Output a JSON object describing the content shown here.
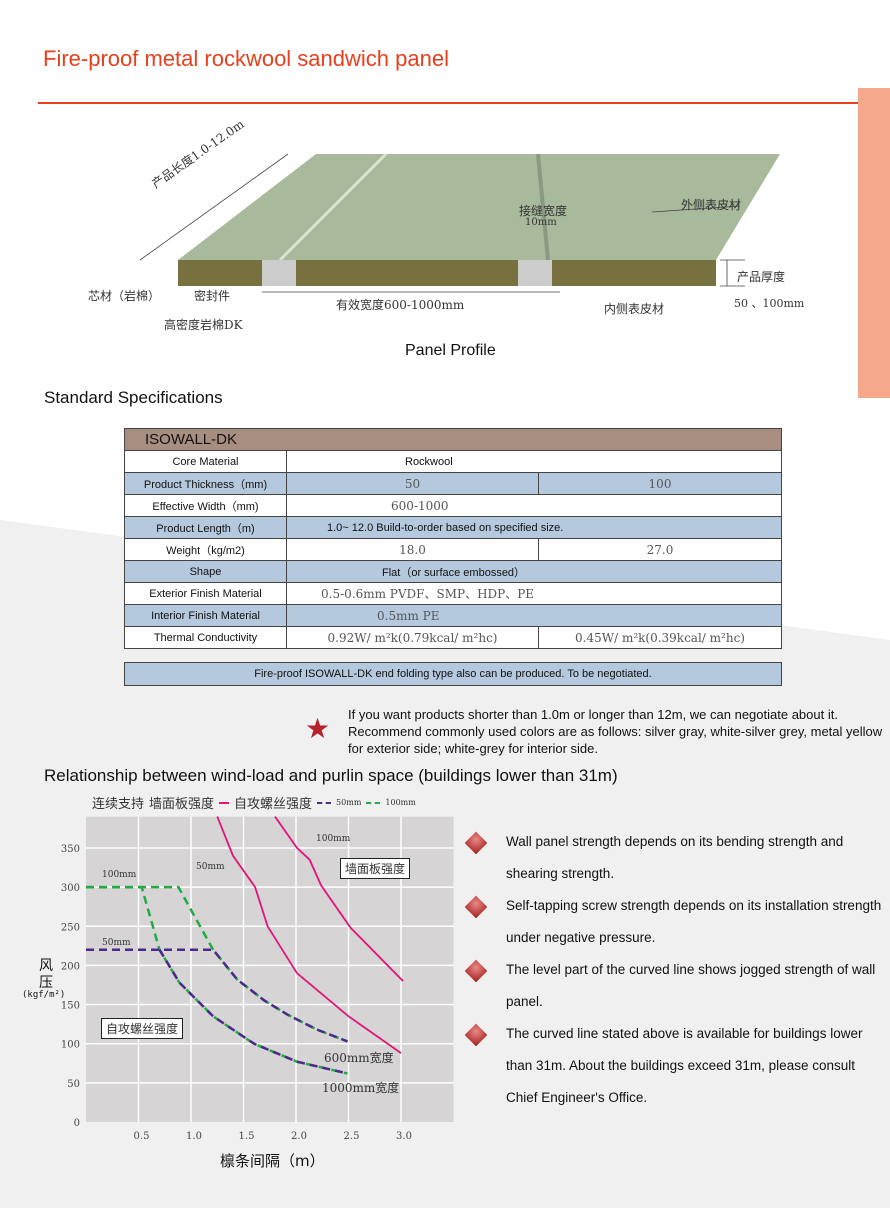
{
  "header": {
    "title": "Fire-proof metal rockwool sandwich panel"
  },
  "colors": {
    "accent": "#e8401c",
    "side_bar": "#f5a98a",
    "table_header": "#a88e80",
    "table_blue": "#b4c8de",
    "wall_panel_line": "#e0157a",
    "screw_50mm": "#4b2a8a",
    "screw_100mm": "#22aa44"
  },
  "diagram": {
    "caption": "Panel Profile",
    "labels": {
      "length": "产品长度1.0-12.0m",
      "joint": "接缝宽度",
      "joint_value": "10mm",
      "outer_skin": "外侧表皮材",
      "thickness": "产品厚度",
      "thickness_value": "50 、100mm",
      "core": "芯材（岩棉）",
      "seal": "密封件",
      "width": "有效宽度600-1000mm",
      "inner_skin": "内侧表皮材",
      "hd_rockwool": "高密度岩棉DK"
    }
  },
  "specs": {
    "section_title": "Standard Specifications",
    "table_title": "ISOWALL-DK",
    "rows": [
      {
        "label": "Core Material",
        "values": [
          "Rockwool"
        ]
      },
      {
        "label": "Product Thickness（mm)",
        "values": [
          "50",
          "100"
        ]
      },
      {
        "label": "Effective Width（mm)",
        "values": [
          "600-1000"
        ]
      },
      {
        "label": "Product Length（m)",
        "values": [
          "1.0~ 12.0 Build-to-order based on specified size."
        ]
      },
      {
        "label": "Weight（kg/m2)",
        "values": [
          "18.0",
          "27.0"
        ]
      },
      {
        "label": "Shape",
        "values": [
          "Flat（or surface embossed）"
        ]
      },
      {
        "label": "Exterior Finish Material",
        "values": [
          "0.5-0.6mm  PVDF、SMP、HDP、PE"
        ]
      },
      {
        "label": "Interior Finish Material",
        "values": [
          "0.5mm  PE"
        ]
      },
      {
        "label": "Thermal Conductivity",
        "values": [
          "0.92W/ m²k(0.79kcal/ m²hc)",
          "0.45W/ m²k(0.39kcal/ m²hc)"
        ]
      }
    ],
    "note": "Fire-proof ISOWALL-DK end folding type also can be produced. To be negotiated."
  },
  "star_note": {
    "icon": "star-icon",
    "lines": [
      "If you want products shorter than 1.0m or longer than 12m, we can negotiate about it.",
      "Recommend commonly used colors are as follows: silver gray, white-silver grey, metal yellow for exterior side; white-grey for interior side."
    ]
  },
  "wind": {
    "title": "Relationship between wind-load and purlin space (buildings lower than 31m)",
    "bullets": [
      "Wall panel strength depends on its bending strength and shearing strength.",
      "Self-tapping screw strength depends on its installation strength under negative pressure.",
      "The level part of the curved line shows jogged strength of wall panel.",
      "The curved line stated above is available for buildings lower than 31m. About the buildings exceed 31m, please consult Chief Engineer's Office."
    ]
  },
  "chart_data": {
    "type": "line",
    "legend": {
      "prefix": "连续支持",
      "wall_panel": "墙面板强度",
      "screw": "自攻螺丝强度",
      "s50": "50mm",
      "s100": "100mm",
      "placement": "top"
    },
    "xlabel": "檩条间隔（m）",
    "ylabel": "风压",
    "ylabel_unit": "(kgf/m²)",
    "xlim": [
      0,
      3.5
    ],
    "ylim": [
      0,
      390
    ],
    "xticks": [
      "0.5",
      "1.0",
      "1.5",
      "2.0",
      "2.5",
      "3.0"
    ],
    "yticks": [
      "0",
      "50",
      "100",
      "150",
      "200",
      "250",
      "300",
      "350"
    ],
    "grid": true,
    "annotations": {
      "wall_box": "墙面板强度",
      "screw_box": "自攻螺丝强度",
      "w600": "600mm宽度",
      "w1000": "1000mm宽度",
      "wall50": "50mm",
      "wall100": "100mm",
      "screw100": "100mm",
      "screw50": "50mm"
    },
    "series": [
      {
        "group": "wall",
        "thickness": "50mm",
        "style": "solid",
        "points": [
          [
            1.25,
            390
          ],
          [
            1.4,
            340
          ],
          [
            1.61,
            300
          ],
          [
            1.73,
            250
          ],
          [
            2.01,
            190
          ],
          [
            2.5,
            135
          ],
          [
            3.0,
            88
          ]
        ]
      },
      {
        "group": "wall",
        "thickness": "100mm",
        "style": "solid",
        "points": [
          [
            1.8,
            390
          ],
          [
            2.01,
            350
          ],
          [
            2.13,
            335
          ],
          [
            2.24,
            302
          ],
          [
            2.52,
            248
          ],
          [
            3.02,
            180
          ]
        ]
      },
      {
        "group": "screw",
        "thickness": "100mm",
        "width": "600mm",
        "style": "dashed-green",
        "points": [
          [
            0,
            300
          ],
          [
            0.88,
            300
          ],
          [
            1.21,
            220
          ],
          [
            1.44,
            182
          ],
          [
            1.7,
            155
          ],
          [
            1.92,
            137
          ],
          [
            2.2,
            118
          ],
          [
            2.49,
            103
          ]
        ]
      },
      {
        "group": "screw",
        "thickness": "100mm",
        "width": "1000mm",
        "style": "dashed-green",
        "points": [
          [
            0,
            300
          ],
          [
            0.53,
            300
          ],
          [
            0.7,
            220
          ],
          [
            0.89,
            178
          ],
          [
            1.21,
            135
          ],
          [
            1.6,
            100
          ],
          [
            2.01,
            77
          ],
          [
            2.49,
            62
          ]
        ]
      },
      {
        "group": "screw",
        "thickness": "50mm",
        "width": "600mm",
        "style": "dashed-purple",
        "points": [
          [
            0,
            220
          ],
          [
            1.21,
            220
          ],
          [
            1.44,
            182
          ],
          [
            1.7,
            155
          ],
          [
            1.92,
            137
          ],
          [
            2.2,
            118
          ],
          [
            2.49,
            103
          ]
        ]
      },
      {
        "group": "screw",
        "thickness": "50mm",
        "width": "1000mm",
        "style": "dashed-purple",
        "points": [
          [
            0.7,
            220
          ],
          [
            0.89,
            178
          ],
          [
            1.21,
            135
          ],
          [
            1.6,
            100
          ],
          [
            2.01,
            77
          ],
          [
            2.49,
            62
          ]
        ]
      }
    ]
  }
}
